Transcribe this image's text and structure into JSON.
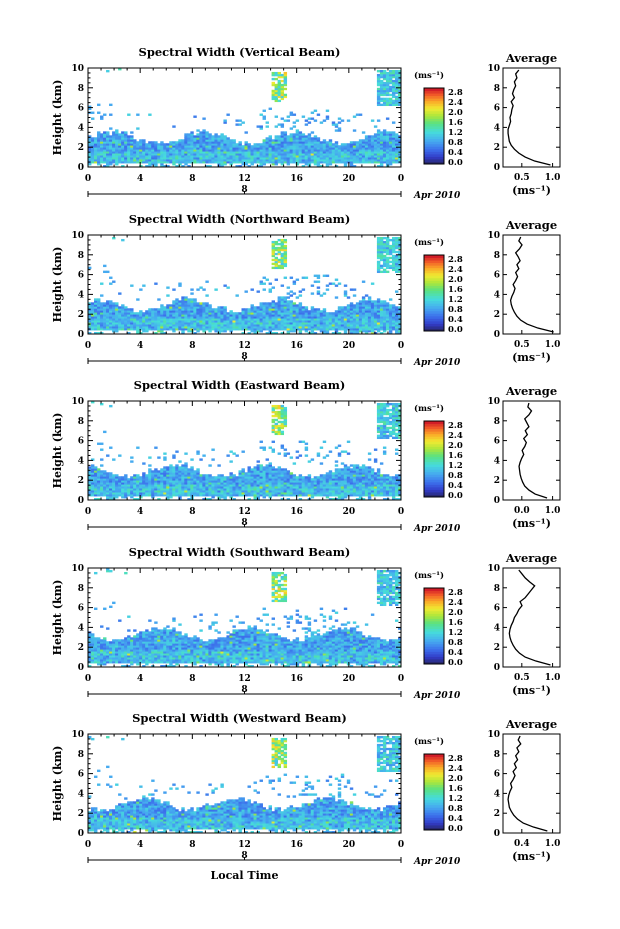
{
  "figure": {
    "footer_xlabel": "Local Time",
    "date_label": "Apr 2010",
    "day_marker": "8",
    "cbar_unit_label": "(ms⁻¹)",
    "cbar_ticks": [
      "2.8",
      "2.4",
      "2.0",
      "1.6",
      "1.2",
      "0.8",
      "0.4",
      "0.0"
    ],
    "avg_unit_label": "(ms⁻¹)",
    "avg_title": "Average",
    "ylabel": "Height (km)",
    "colors": {
      "white_bg": "#ffffff",
      "frame": "#000000"
    }
  },
  "chart_data": [
    {
      "type": "heatmap",
      "title": "Spectral Width (Vertical Beam)",
      "x_ticks": [
        "0",
        "4",
        "8",
        "12",
        "16",
        "20",
        "0"
      ],
      "y_ticks": [
        "0",
        "2",
        "4",
        "6",
        "8",
        "10"
      ],
      "xlim": [
        0,
        24
      ],
      "ylim": [
        0,
        10
      ],
      "colorbar": {
        "label": "(ms⁻¹)",
        "range": [
          0,
          3.0
        ]
      },
      "average_profile": {
        "x_ticks": [
          "0.5",
          "1.0"
        ],
        "y_ticks": [
          "0",
          "2",
          "4",
          "6",
          "8",
          "10"
        ],
        "xlim": [
          0.2,
          1.1
        ],
        "ylim": [
          0,
          10
        ],
        "height_km": [
          0.2,
          0.6,
          1.0,
          1.4,
          1.8,
          2.2,
          2.6,
          3.0,
          3.4,
          3.8,
          4.2,
          4.6,
          5.0,
          5.4,
          5.8,
          6.2,
          6.6,
          7.0,
          7.4,
          7.8,
          8.2,
          8.6,
          9.0,
          9.4,
          9.8
        ],
        "width_ms": [
          0.95,
          0.7,
          0.55,
          0.45,
          0.38,
          0.33,
          0.3,
          0.29,
          0.28,
          0.28,
          0.3,
          0.32,
          0.31,
          0.33,
          0.34,
          0.36,
          0.33,
          0.38,
          0.35,
          0.37,
          0.4,
          0.38,
          0.42,
          0.4,
          0.45
        ]
      }
    },
    {
      "type": "heatmap",
      "title": "Spectral Width (Northward Beam)",
      "x_ticks": [
        "0",
        "4",
        "8",
        "12",
        "16",
        "20",
        "0"
      ],
      "y_ticks": [
        "0",
        "2",
        "4",
        "6",
        "8",
        "10"
      ],
      "xlim": [
        0,
        24
      ],
      "ylim": [
        0,
        10
      ],
      "colorbar": {
        "label": "(ms⁻¹)",
        "range": [
          0,
          3.0
        ]
      },
      "average_profile": {
        "x_ticks": [
          "0.5",
          "1.0"
        ],
        "y_ticks": [
          "0",
          "2",
          "4",
          "6",
          "8",
          "10"
        ],
        "xlim": [
          0.2,
          1.1
        ],
        "ylim": [
          0,
          10
        ],
        "height_km": [
          0.2,
          0.6,
          1.0,
          1.4,
          1.8,
          2.2,
          2.6,
          3.0,
          3.4,
          3.8,
          4.2,
          4.6,
          5.0,
          5.4,
          5.8,
          6.2,
          6.6,
          7.0,
          7.4,
          7.8,
          8.2,
          8.6,
          9.0,
          9.4,
          9.8
        ],
        "width_ms": [
          1.0,
          0.75,
          0.58,
          0.48,
          0.42,
          0.38,
          0.35,
          0.33,
          0.32,
          0.34,
          0.37,
          0.39,
          0.36,
          0.4,
          0.43,
          0.4,
          0.45,
          0.42,
          0.47,
          0.44,
          0.4,
          0.46,
          0.5,
          0.45,
          0.48
        ]
      }
    },
    {
      "type": "heatmap",
      "title": "Spectral Width (Eastward Beam)",
      "x_ticks": [
        "0",
        "4",
        "8",
        "12",
        "16",
        "20",
        "0"
      ],
      "y_ticks": [
        "0",
        "2",
        "4",
        "6",
        "8",
        "10"
      ],
      "xlim": [
        0,
        24
      ],
      "ylim": [
        0,
        10
      ],
      "colorbar": {
        "label": "(ms⁻¹)",
        "range": [
          0,
          3.0
        ]
      },
      "average_profile": {
        "x_ticks": [
          "0.0",
          "1.0"
        ],
        "y_ticks": [
          "0",
          "2",
          "4",
          "6",
          "8",
          "10"
        ],
        "xlim": [
          0.0,
          1.1
        ],
        "ylim": [
          0,
          10
        ],
        "height_km": [
          0.2,
          0.6,
          1.0,
          1.4,
          1.8,
          2.2,
          2.6,
          3.0,
          3.4,
          3.8,
          4.2,
          4.6,
          5.0,
          5.4,
          5.8,
          6.2,
          6.6,
          7.0,
          7.4,
          7.8,
          8.2,
          8.6,
          9.0,
          9.4,
          9.8
        ],
        "width_ms": [
          0.85,
          0.62,
          0.5,
          0.42,
          0.38,
          0.35,
          0.33,
          0.32,
          0.31,
          0.33,
          0.36,
          0.4,
          0.37,
          0.42,
          0.45,
          0.4,
          0.47,
          0.43,
          0.5,
          0.46,
          0.42,
          0.5,
          0.55,
          0.48,
          0.5
        ]
      }
    },
    {
      "type": "heatmap",
      "title": "Spectral Width (Southward Beam)",
      "x_ticks": [
        "0",
        "4",
        "8",
        "12",
        "16",
        "20",
        "0"
      ],
      "y_ticks": [
        "0",
        "2",
        "4",
        "6",
        "8",
        "10"
      ],
      "xlim": [
        0,
        24
      ],
      "ylim": [
        0,
        10
      ],
      "colorbar": {
        "label": "(ms⁻¹)",
        "range": [
          0,
          3.0
        ]
      },
      "average_profile": {
        "x_ticks": [
          "0.5",
          "1.0"
        ],
        "y_ticks": [
          "0",
          "2",
          "4",
          "6",
          "8",
          "10"
        ],
        "xlim": [
          0.2,
          1.1
        ],
        "ylim": [
          0,
          10
        ],
        "height_km": [
          0.2,
          0.6,
          1.0,
          1.4,
          1.8,
          2.2,
          2.6,
          3.0,
          3.4,
          3.8,
          4.2,
          4.6,
          5.0,
          5.4,
          5.8,
          6.2,
          6.6,
          7.0,
          7.4,
          7.8,
          8.2,
          8.6,
          9.0,
          9.4,
          9.8
        ],
        "width_ms": [
          0.95,
          0.72,
          0.55,
          0.46,
          0.4,
          0.36,
          0.33,
          0.31,
          0.3,
          0.31,
          0.33,
          0.36,
          0.38,
          0.42,
          0.45,
          0.5,
          0.47,
          0.55,
          0.6,
          0.65,
          0.7,
          0.62,
          0.55,
          0.5,
          0.45
        ]
      }
    },
    {
      "type": "heatmap",
      "title": "Spectral Width (Westward Beam)",
      "x_ticks": [
        "0",
        "4",
        "8",
        "12",
        "16",
        "20",
        "0"
      ],
      "y_ticks": [
        "0",
        "2",
        "4",
        "6",
        "8",
        "10"
      ],
      "xlim": [
        0,
        24
      ],
      "ylim": [
        0,
        10
      ],
      "colorbar": {
        "label": "(ms⁻¹)",
        "range": [
          0,
          3.0
        ]
      },
      "average_profile": {
        "x_ticks": [
          "0.4",
          "1.0"
        ],
        "y_ticks": [
          "0",
          "2",
          "4",
          "6",
          "8",
          "10"
        ],
        "xlim": [
          0.2,
          1.1
        ],
        "ylim": [
          0,
          10
        ],
        "height_km": [
          0.2,
          0.6,
          1.0,
          1.4,
          1.8,
          2.2,
          2.6,
          3.0,
          3.4,
          3.8,
          4.2,
          4.6,
          5.0,
          5.4,
          5.8,
          6.2,
          6.6,
          7.0,
          7.4,
          7.8,
          8.2,
          8.6,
          9.0,
          9.4,
          9.8
        ],
        "width_ms": [
          0.9,
          0.68,
          0.52,
          0.43,
          0.37,
          0.33,
          0.3,
          0.29,
          0.28,
          0.29,
          0.31,
          0.34,
          0.32,
          0.36,
          0.39,
          0.36,
          0.41,
          0.38,
          0.43,
          0.4,
          0.45,
          0.42,
          0.48,
          0.44,
          0.47
        ]
      }
    }
  ]
}
